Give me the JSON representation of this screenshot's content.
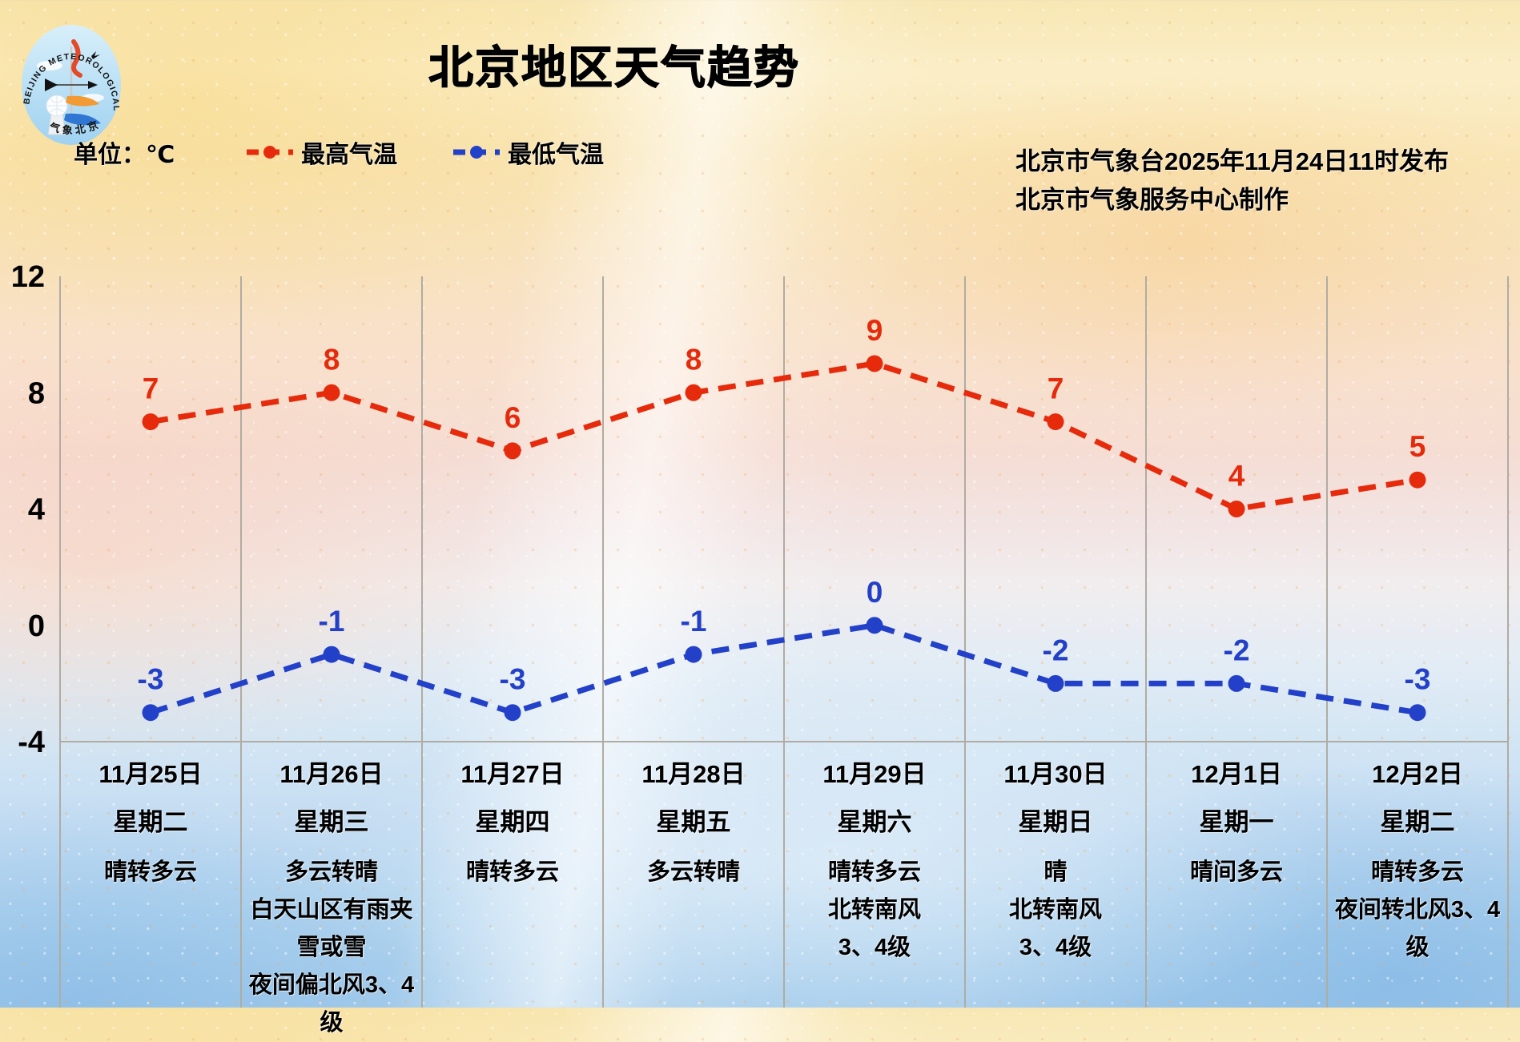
{
  "title": "北京地区天气趋势",
  "unit_label": "单位：℃",
  "publisher": {
    "line1": "北京市气象台2025年11月24日11时发布",
    "line2": "北京市气象服务中心制作"
  },
  "logo": {
    "text_top": "BEIJING METEOROLOGICAL SERVICE",
    "text_bottom": "气象北京"
  },
  "legend": [
    {
      "label": "最高气温",
      "color": "#e62b0d"
    },
    {
      "label": "最低气温",
      "color": "#2340c8"
    }
  ],
  "chart_data": {
    "type": "line",
    "title": "北京地区天气趋势",
    "unit": "℃",
    "ylim": [
      -4,
      12
    ],
    "yticks": [
      12,
      8,
      4,
      0,
      -4
    ],
    "grid": "vertical day separators + horizontal baseline at -4",
    "legend_position": "top-left",
    "line_style": "dashed with circle markers and value labels",
    "categories": [
      {
        "date": "11月25日",
        "weekday": "星期二",
        "weather": [
          "晴转多云"
        ]
      },
      {
        "date": "11月26日",
        "weekday": "星期三",
        "weather": [
          "多云转晴",
          "白天山区有雨夹雪或雪",
          "夜间偏北风3、4级"
        ]
      },
      {
        "date": "11月27日",
        "weekday": "星期四",
        "weather": [
          "晴转多云"
        ]
      },
      {
        "date": "11月28日",
        "weekday": "星期五",
        "weather": [
          "多云转晴"
        ]
      },
      {
        "date": "11月29日",
        "weekday": "星期六",
        "weather": [
          "晴转多云",
          "北转南风",
          "3、4级"
        ]
      },
      {
        "date": "11月30日",
        "weekday": "星期日",
        "weather": [
          "晴",
          "北转南风",
          "3、4级"
        ]
      },
      {
        "date": "12月1日",
        "weekday": "星期一",
        "weather": [
          "晴间多云"
        ]
      },
      {
        "date": "12月2日",
        "weekday": "星期二",
        "weather": [
          "晴转多云",
          "夜间转北风3、4级"
        ]
      }
    ],
    "series": [
      {
        "name": "最高气温",
        "color": "#e62b0d",
        "values": [
          7,
          8,
          6,
          8,
          9,
          7,
          4,
          5
        ]
      },
      {
        "name": "最低气温",
        "color": "#2340c8",
        "values": [
          -3,
          -1,
          -3,
          -1,
          0,
          -2,
          -2,
          -3
        ]
      }
    ],
    "colors": {
      "grid": "#b0aca3",
      "text": "#000000"
    }
  }
}
